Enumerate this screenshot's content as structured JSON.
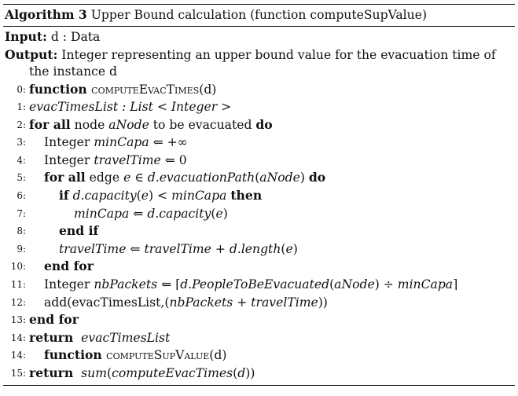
{
  "algorithm": {
    "caption_label": "Algorithm 3",
    "caption_text": "Upper Bound calculation (function computeSupValue)",
    "input_label": "Input:",
    "input_text": "d : Data",
    "output_label": "Output:",
    "output_text_1": "Integer representing an upper bound value for the evacuation time of",
    "output_text_2": "the instance d",
    "lines": [
      {
        "num": "0:",
        "indent": 0,
        "parts": [
          {
            "t": "function ",
            "s": "kw"
          },
          {
            "t": "computeEvacTimes",
            "s": "sc"
          },
          {
            "t": "(d)",
            "s": ""
          }
        ]
      },
      {
        "num": "1:",
        "indent": 0,
        "parts": [
          {
            "t": "evacTimesList : List < Integer >",
            "s": "it"
          }
        ]
      },
      {
        "num": "2:",
        "indent": 0,
        "parts": [
          {
            "t": "for all",
            "s": "kw"
          },
          {
            "t": " node ",
            "s": ""
          },
          {
            "t": "aNode",
            "s": "it"
          },
          {
            "t": " to be evacuated ",
            "s": ""
          },
          {
            "t": "do",
            "s": "kw"
          }
        ]
      },
      {
        "num": "3:",
        "indent": 1,
        "parts": [
          {
            "t": "Integer ",
            "s": ""
          },
          {
            "t": "minCapa",
            "s": "it"
          },
          {
            "t": " ⇐ +∞",
            "s": ""
          }
        ]
      },
      {
        "num": "4:",
        "indent": 1,
        "parts": [
          {
            "t": "Integer ",
            "s": ""
          },
          {
            "t": "travelTime",
            "s": "it"
          },
          {
            "t": " ⇐ 0",
            "s": ""
          }
        ]
      },
      {
        "num": "5:",
        "indent": 1,
        "parts": [
          {
            "t": "for all",
            "s": "kw"
          },
          {
            "t": " edge ",
            "s": ""
          },
          {
            "t": "e",
            "s": "it"
          },
          {
            "t": " ∈ ",
            "s": ""
          },
          {
            "t": "d.evacuationPath",
            "s": "it"
          },
          {
            "t": "(",
            "s": ""
          },
          {
            "t": "aNode",
            "s": "it"
          },
          {
            "t": ") ",
            "s": ""
          },
          {
            "t": "do",
            "s": "kw"
          }
        ]
      },
      {
        "num": "6:",
        "indent": 2,
        "parts": [
          {
            "t": "if",
            "s": "kw"
          },
          {
            "t": " ",
            "s": ""
          },
          {
            "t": "d.capacity",
            "s": "it"
          },
          {
            "t": "(",
            "s": ""
          },
          {
            "t": "e",
            "s": "it"
          },
          {
            "t": ") < ",
            "s": ""
          },
          {
            "t": "minCapa",
            "s": "it"
          },
          {
            "t": " ",
            "s": ""
          },
          {
            "t": "then",
            "s": "kw"
          }
        ]
      },
      {
        "num": "7:",
        "indent": 3,
        "parts": [
          {
            "t": "minCapa",
            "s": "it"
          },
          {
            "t": " ⇐ ",
            "s": ""
          },
          {
            "t": "d.capacity",
            "s": "it"
          },
          {
            "t": "(",
            "s": ""
          },
          {
            "t": "e",
            "s": "it"
          },
          {
            "t": ")",
            "s": ""
          }
        ]
      },
      {
        "num": "8:",
        "indent": 2,
        "parts": [
          {
            "t": "end if",
            "s": "kw"
          }
        ]
      },
      {
        "num": "9:",
        "indent": 2,
        "parts": [
          {
            "t": "travelTime",
            "s": "it"
          },
          {
            "t": " ⇐ ",
            "s": ""
          },
          {
            "t": "travelTime",
            "s": "it"
          },
          {
            "t": " + ",
            "s": ""
          },
          {
            "t": "d.length",
            "s": "it"
          },
          {
            "t": "(",
            "s": ""
          },
          {
            "t": "e",
            "s": "it"
          },
          {
            "t": ")",
            "s": ""
          }
        ]
      },
      {
        "num": "10:",
        "indent": 1,
        "parts": [
          {
            "t": "end for",
            "s": "kw"
          }
        ]
      },
      {
        "num": "11:",
        "indent": 1,
        "parts": [
          {
            "t": "Integer ",
            "s": ""
          },
          {
            "t": "nbPackets",
            "s": "it"
          },
          {
            "t": " ⇐ ⌈",
            "s": ""
          },
          {
            "t": "d.PeopleToBeEvacuated",
            "s": "it"
          },
          {
            "t": "(",
            "s": ""
          },
          {
            "t": "aNode",
            "s": "it"
          },
          {
            "t": ") ÷ ",
            "s": ""
          },
          {
            "t": "minCapa",
            "s": "it"
          },
          {
            "t": "⌉",
            "s": ""
          }
        ]
      },
      {
        "num": "12:",
        "indent": 1,
        "parts": [
          {
            "t": "add(evacTimesList,(",
            "s": ""
          },
          {
            "t": "nbPackets",
            "s": "it"
          },
          {
            "t": " + ",
            "s": ""
          },
          {
            "t": "travelTime",
            "s": "it"
          },
          {
            "t": "))",
            "s": ""
          }
        ]
      },
      {
        "num": "13:",
        "indent": 0,
        "parts": [
          {
            "t": "end for",
            "s": "kw"
          }
        ]
      },
      {
        "num": "14:",
        "indent": 0,
        "parts": [
          {
            "t": "return",
            "s": "kw"
          },
          {
            "t": "  ",
            "s": ""
          },
          {
            "t": "evacTimesList",
            "s": "it"
          }
        ]
      },
      {
        "num": "14:",
        "indent": 1,
        "parts": [
          {
            "t": "function ",
            "s": "kw"
          },
          {
            "t": "computeSupValue",
            "s": "sc"
          },
          {
            "t": "(d)",
            "s": ""
          }
        ]
      },
      {
        "num": "15:",
        "indent": 0,
        "parts": [
          {
            "t": "return",
            "s": "kw"
          },
          {
            "t": "  ",
            "s": ""
          },
          {
            "t": "sum",
            "s": "it"
          },
          {
            "t": "(",
            "s": ""
          },
          {
            "t": "computeEvacTimes",
            "s": "it"
          },
          {
            "t": "(",
            "s": ""
          },
          {
            "t": "d",
            "s": "it"
          },
          {
            "t": "))",
            "s": ""
          }
        ]
      }
    ]
  }
}
